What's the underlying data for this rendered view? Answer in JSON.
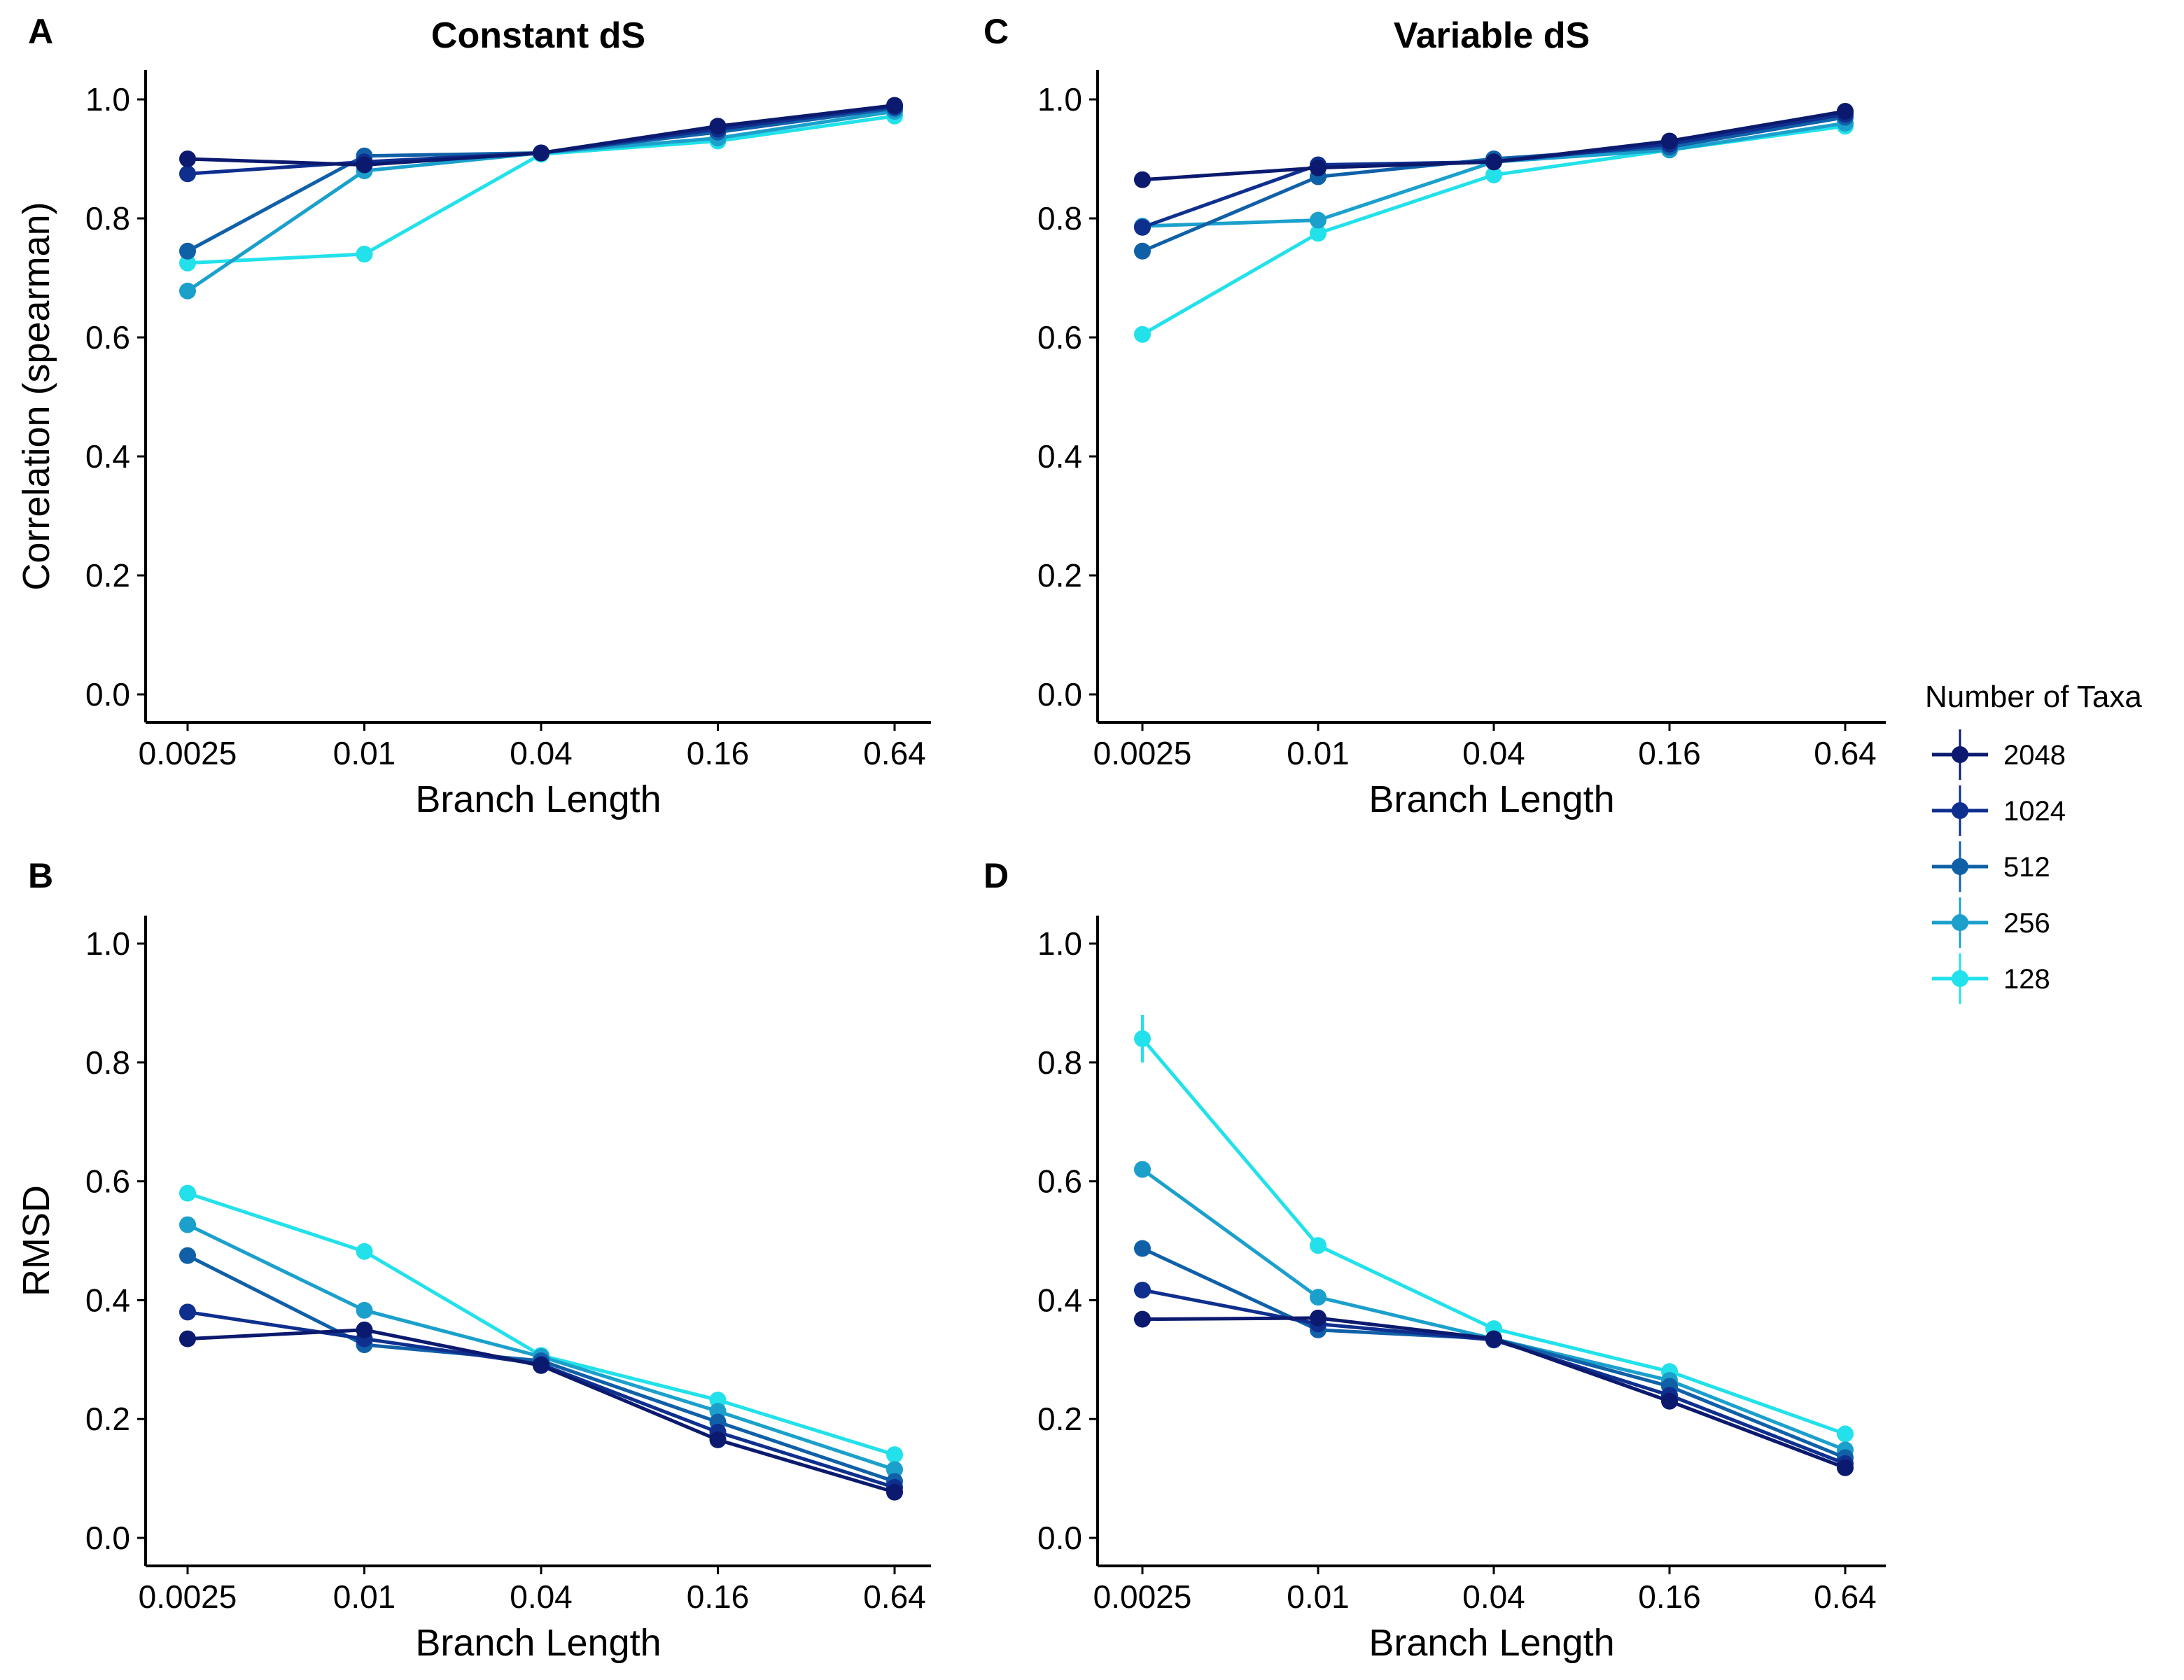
{
  "legend": {
    "title": "Number of Taxa",
    "entries": [
      {
        "label": "2048",
        "color": "#0b1a6e"
      },
      {
        "label": "1024",
        "color": "#0f2f8f"
      },
      {
        "label": "512",
        "color": "#1060a8"
      },
      {
        "label": "256",
        "color": "#1ba0cc"
      },
      {
        "label": "128",
        "color": "#22e1ea"
      }
    ]
  },
  "chart_data": [
    {
      "type": "line",
      "panel": "A",
      "title": "Constant dS",
      "xlabel": "Branch Length",
      "ylabel": "Correlation (spearman)",
      "x_scale": "log",
      "categories": [
        "0.0025",
        "0.01",
        "0.04",
        "0.16",
        "0.64"
      ],
      "ylim": [
        0,
        1
      ],
      "yticks": [
        "0.0",
        "0.2",
        "0.4",
        "0.6",
        "0.8",
        "1.0"
      ],
      "series": [
        {
          "name": "2048",
          "values": [
            0.9,
            0.89,
            0.91,
            0.955,
            0.99
          ]
        },
        {
          "name": "1024",
          "values": [
            0.875,
            0.895,
            0.91,
            0.95,
            0.988
          ]
        },
        {
          "name": "512",
          "values": [
            0.745,
            0.905,
            0.91,
            0.945,
            0.985
          ]
        },
        {
          "name": "256",
          "values": [
            0.678,
            0.88,
            0.91,
            0.935,
            0.98
          ]
        },
        {
          "name": "128",
          "values": [
            0.725,
            0.74,
            0.908,
            0.93,
            0.972
          ]
        }
      ]
    },
    {
      "type": "line",
      "panel": "C",
      "title": "Variable dS",
      "xlabel": "Branch Length",
      "ylabel": "",
      "x_scale": "log",
      "categories": [
        "0.0025",
        "0.01",
        "0.04",
        "0.16",
        "0.64"
      ],
      "ylim": [
        0,
        1
      ],
      "yticks": [
        "0.0",
        "0.2",
        "0.4",
        "0.6",
        "0.8",
        "1.0"
      ],
      "series": [
        {
          "name": "2048",
          "values": [
            0.865,
            0.885,
            0.895,
            0.93,
            0.98
          ]
        },
        {
          "name": "1024",
          "values": [
            0.785,
            0.89,
            0.895,
            0.925,
            0.975
          ]
        },
        {
          "name": "512",
          "values": [
            0.745,
            0.87,
            0.9,
            0.92,
            0.97
          ]
        },
        {
          "name": "256",
          "values": [
            0.787,
            0.797,
            0.895,
            0.915,
            0.96
          ]
        },
        {
          "name": "128",
          "values": [
            0.605,
            0.775,
            0.873,
            0.915,
            0.955
          ]
        }
      ]
    },
    {
      "type": "line",
      "panel": "B",
      "title": "",
      "xlabel": "Branch Length",
      "ylabel": "RMSD",
      "x_scale": "log",
      "categories": [
        "0.0025",
        "0.01",
        "0.04",
        "0.16",
        "0.64"
      ],
      "ylim": [
        0,
        1
      ],
      "yticks": [
        "0.0",
        "0.2",
        "0.4",
        "0.6",
        "0.8",
        "1.0"
      ],
      "series": [
        {
          "name": "2048",
          "values": [
            0.335,
            0.35,
            0.29,
            0.165,
            0.077
          ]
        },
        {
          "name": "1024",
          "values": [
            0.38,
            0.335,
            0.292,
            0.178,
            0.085
          ]
        },
        {
          "name": "512",
          "values": [
            0.475,
            0.325,
            0.298,
            0.195,
            0.095
          ]
        },
        {
          "name": "256",
          "values": [
            0.527,
            0.383,
            0.305,
            0.213,
            0.115
          ]
        },
        {
          "name": "128",
          "values": [
            0.58,
            0.482,
            0.307,
            0.232,
            0.14
          ]
        }
      ]
    },
    {
      "type": "line",
      "panel": "D",
      "title": "",
      "xlabel": "Branch Length",
      "ylabel": "",
      "x_scale": "log",
      "categories": [
        "0.0025",
        "0.01",
        "0.04",
        "0.16",
        "0.64"
      ],
      "ylim": [
        0,
        1
      ],
      "yticks": [
        "0.0",
        "0.2",
        "0.4",
        "0.6",
        "0.8",
        "1.0"
      ],
      "series": [
        {
          "name": "2048",
          "values": [
            0.368,
            0.37,
            0.335,
            0.23,
            0.118
          ]
        },
        {
          "name": "1024",
          "values": [
            0.417,
            0.36,
            0.333,
            0.24,
            0.125
          ]
        },
        {
          "name": "512",
          "values": [
            0.487,
            0.35,
            0.335,
            0.255,
            0.135
          ]
        },
        {
          "name": "256",
          "values": [
            0.62,
            0.405,
            0.335,
            0.265,
            0.148
          ]
        },
        {
          "name": "128",
          "values": [
            0.84,
            0.492,
            0.352,
            0.28,
            0.175
          ]
        }
      ],
      "error_bars": [
        {
          "series": "128",
          "category": "0.0025",
          "low": 0.8,
          "high": 0.88
        }
      ]
    }
  ]
}
